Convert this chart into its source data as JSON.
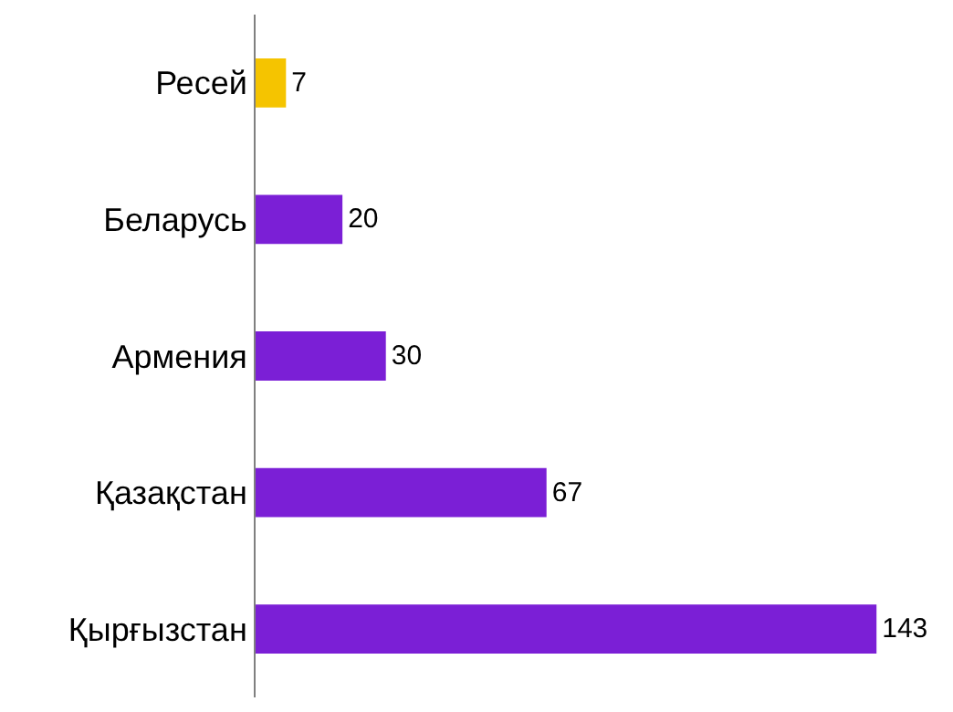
{
  "chart_data": {
    "type": "bar",
    "orientation": "horizontal",
    "categories": [
      "Ресей",
      "Беларусь",
      "Армения",
      "Қазақстан",
      "Қырғызстан"
    ],
    "values": [
      7,
      20,
      30,
      67,
      143
    ],
    "data_labels": true,
    "tick_labels": "y",
    "colors": [
      "#f5c400",
      "#7b1fd6",
      "#7b1fd6",
      "#7b1fd6",
      "#7b1fd6"
    ],
    "legend": false
  }
}
